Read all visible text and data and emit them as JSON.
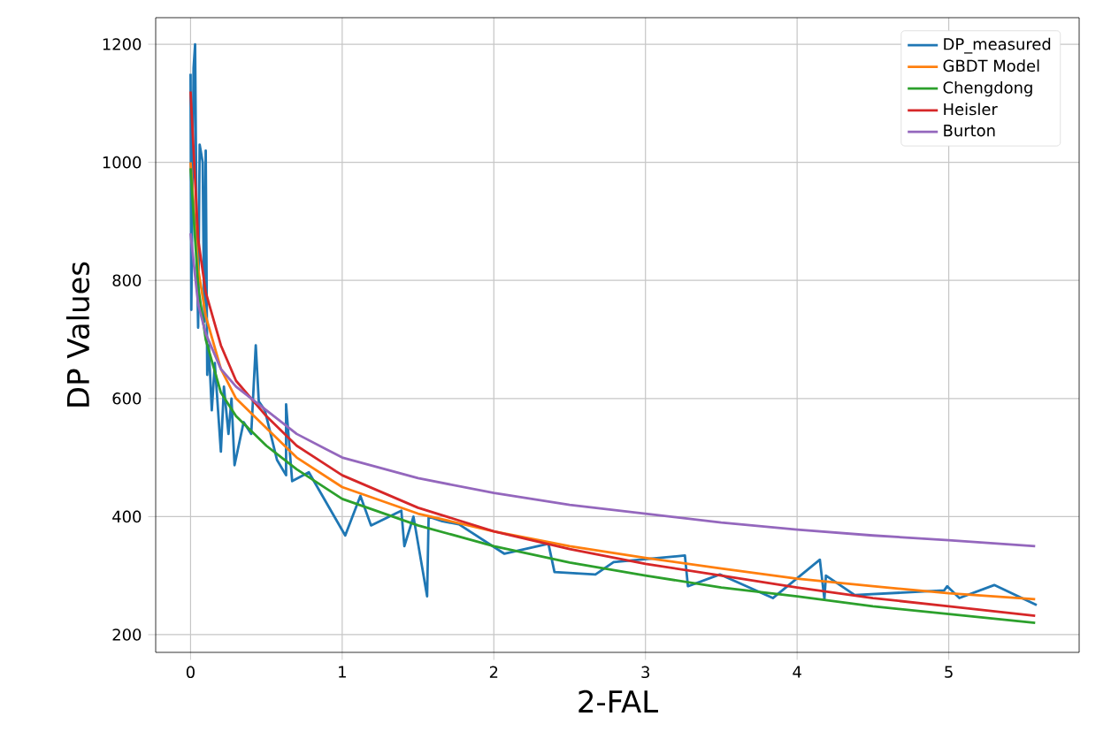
{
  "chart_data": {
    "type": "line",
    "xlabel": "2-FAL",
    "ylabel": "DP Values",
    "xlim": [
      -0.23,
      5.86
    ],
    "ylim": [
      170,
      1245
    ],
    "xticks": [
      0,
      1,
      2,
      3,
      4,
      5
    ],
    "yticks": [
      200,
      400,
      600,
      800,
      1000,
      1200
    ],
    "grid": true,
    "legend": "top right",
    "series": [
      {
        "name": "DP_measured",
        "color": "#1f77b4",
        "x": [
          0.0,
          0.005,
          0.02,
          0.03,
          0.04,
          0.05,
          0.06,
          0.08,
          0.09,
          0.1,
          0.11,
          0.12,
          0.14,
          0.16,
          0.2,
          0.22,
          0.25,
          0.27,
          0.29,
          0.35,
          0.4,
          0.43,
          0.45,
          0.49,
          0.57,
          0.63,
          0.63,
          0.67,
          0.78,
          1.02,
          1.12,
          1.19,
          1.39,
          1.41,
          1.47,
          1.56,
          1.57,
          1.66,
          1.77,
          2.07,
          2.36,
          2.4,
          2.67,
          2.79,
          3.26,
          3.28,
          3.49,
          3.84,
          4.15,
          4.18,
          4.19,
          4.38,
          4.97,
          4.99,
          5.07,
          5.3,
          5.58
        ],
        "values": [
          1150,
          750,
          1160,
          1200,
          870,
          720,
          1030,
          1000,
          730,
          1020,
          640,
          690,
          580,
          660,
          510,
          620,
          540,
          600,
          487,
          560,
          540,
          690,
          595,
          580,
          496,
          470,
          590,
          460,
          475,
          368,
          435,
          385,
          410,
          350,
          400,
          265,
          400,
          392,
          387,
          337,
          354,
          306,
          302,
          323,
          334,
          282,
          302,
          262,
          327,
          260,
          300,
          267,
          275,
          282,
          262,
          284,
          250
        ]
      },
      {
        "name": "GBDT Model",
        "color": "#ff7f0e",
        "x": [
          0.0,
          0.05,
          0.1,
          0.2,
          0.3,
          0.5,
          0.7,
          1,
          1.5,
          2,
          2.5,
          3,
          3.5,
          4,
          4.5,
          5,
          5.57
        ],
        "values": [
          1000,
          820,
          740,
          650,
          600,
          550,
          500,
          450,
          405,
          375,
          350,
          330,
          312,
          295,
          282,
          270,
          260
        ]
      },
      {
        "name": "Chengdong",
        "color": "#2ca02c",
        "x": [
          0.0,
          0.05,
          0.1,
          0.2,
          0.3,
          0.5,
          0.7,
          1,
          1.5,
          2,
          2.5,
          3,
          3.5,
          4,
          4.5,
          5,
          5.57
        ],
        "values": [
          990,
          790,
          700,
          610,
          570,
          520,
          480,
          430,
          385,
          350,
          322,
          300,
          280,
          265,
          248,
          235,
          220
        ]
      },
      {
        "name": "Heisler",
        "color": "#d62728",
        "x": [
          0.0,
          0.05,
          0.1,
          0.2,
          0.3,
          0.5,
          0.7,
          1,
          1.5,
          2,
          2.5,
          3,
          3.5,
          4,
          4.5,
          5,
          5.57
        ],
        "values": [
          1120,
          870,
          780,
          690,
          630,
          570,
          520,
          470,
          415,
          375,
          345,
          320,
          300,
          280,
          262,
          248,
          232
        ]
      },
      {
        "name": "Burton",
        "color": "#9467bd",
        "x": [
          0.0,
          0.05,
          0.1,
          0.2,
          0.3,
          0.5,
          0.7,
          1,
          1.5,
          2,
          2.5,
          3,
          3.5,
          4,
          4.5,
          5,
          5.57
        ],
        "values": [
          880,
          760,
          710,
          650,
          620,
          580,
          540,
          500,
          465,
          440,
          420,
          405,
          390,
          378,
          368,
          360,
          350
        ]
      }
    ]
  }
}
